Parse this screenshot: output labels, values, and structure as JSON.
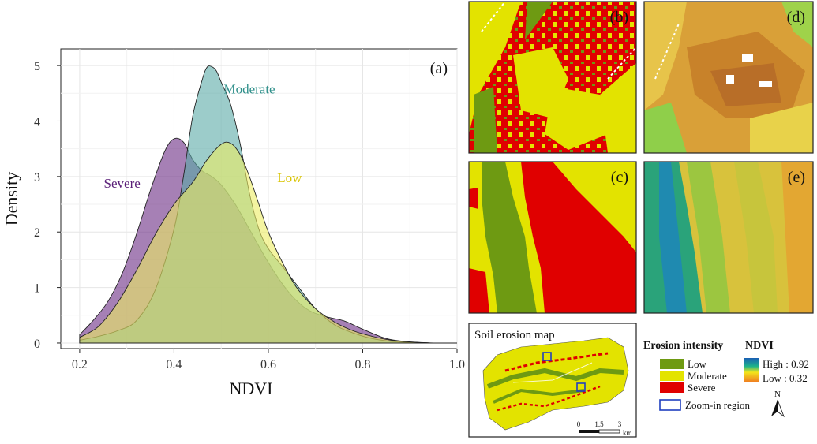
{
  "chart_data": {
    "type": "area",
    "panel_label": "(a)",
    "xlabel": "NDVI",
    "ylabel": "Density",
    "xlim": [
      0.16,
      1.0
    ],
    "ylim": [
      -0.1,
      5.3
    ],
    "xticks": [
      0.2,
      0.4,
      0.6,
      0.8,
      1.0
    ],
    "xtick_labels": [
      "0.2",
      "0.4",
      "0.6",
      "0.8",
      "1.0"
    ],
    "yticks": [
      0,
      1,
      2,
      3,
      4,
      5
    ],
    "ytick_labels": [
      "0",
      "1",
      "2",
      "3",
      "4",
      "5"
    ],
    "grid": true,
    "series": [
      {
        "name": "Severe",
        "color": "#6a2c84",
        "label_pos": [
          0.29,
          2.8
        ],
        "x": [
          0.2,
          0.23,
          0.26,
          0.29,
          0.32,
          0.35,
          0.38,
          0.4,
          0.42,
          0.44,
          0.46,
          0.48,
          0.5,
          0.53,
          0.56,
          0.6,
          0.64,
          0.68,
          0.72,
          0.76,
          0.8,
          0.85,
          0.9,
          0.95,
          1.0
        ],
        "y": [
          0.15,
          0.42,
          0.75,
          1.25,
          1.95,
          2.75,
          3.45,
          3.68,
          3.62,
          3.3,
          3.1,
          3.0,
          2.85,
          2.5,
          2.05,
          1.45,
          0.95,
          0.62,
          0.48,
          0.4,
          0.25,
          0.08,
          0.02,
          0.0,
          0.0
        ]
      },
      {
        "name": "Moderate",
        "color": "#5aaaa6",
        "label_pos": [
          0.56,
          4.5
        ],
        "x": [
          0.2,
          0.24,
          0.28,
          0.32,
          0.36,
          0.4,
          0.42,
          0.44,
          0.46,
          0.47,
          0.48,
          0.49,
          0.5,
          0.52,
          0.54,
          0.56,
          0.58,
          0.6,
          0.63,
          0.66,
          0.7,
          0.74,
          0.78,
          0.82,
          0.86,
          0.9,
          0.95,
          1.0
        ],
        "y": [
          0.05,
          0.12,
          0.22,
          0.4,
          0.95,
          2.05,
          3.0,
          4.1,
          4.75,
          4.97,
          4.98,
          4.9,
          4.7,
          4.3,
          3.6,
          2.7,
          2.05,
          1.7,
          1.38,
          1.05,
          0.62,
          0.33,
          0.18,
          0.08,
          0.03,
          0.01,
          0.0,
          0.0
        ]
      },
      {
        "name": "Low",
        "color": "#ecec62",
        "label_pos": [
          0.645,
          2.9
        ],
        "x": [
          0.2,
          0.24,
          0.28,
          0.32,
          0.36,
          0.4,
          0.44,
          0.47,
          0.5,
          0.52,
          0.54,
          0.56,
          0.58,
          0.6,
          0.63,
          0.66,
          0.7,
          0.74,
          0.78,
          0.82,
          0.86,
          0.9,
          0.95,
          1.0
        ],
        "y": [
          0.1,
          0.3,
          0.72,
          1.3,
          1.95,
          2.5,
          2.9,
          3.3,
          3.58,
          3.6,
          3.4,
          3.0,
          2.5,
          2.0,
          1.45,
          1.0,
          0.62,
          0.38,
          0.22,
          0.12,
          0.05,
          0.02,
          0.0,
          0.0
        ]
      }
    ]
  },
  "panels": {
    "b": "(b)",
    "c": "(c)",
    "d": "(d)",
    "e": "(e)"
  },
  "map": {
    "title": "Soil erosion map",
    "scale_labels": [
      "0",
      "1.5",
      "3"
    ],
    "scale_unit": "km"
  },
  "legend": {
    "erosion_title": "Erosion intensity",
    "items": [
      {
        "label": "Low",
        "color": "#6e9a12"
      },
      {
        "label": "Moderate",
        "color": "#e3e300"
      },
      {
        "label": "Severe",
        "color": "#e00000"
      }
    ],
    "zoom_label": "Zoom-in region",
    "ndvi_title": "NDVI",
    "ndvi_high": "High : 0.92",
    "ndvi_low": "Low : 0.32",
    "north": "N"
  }
}
